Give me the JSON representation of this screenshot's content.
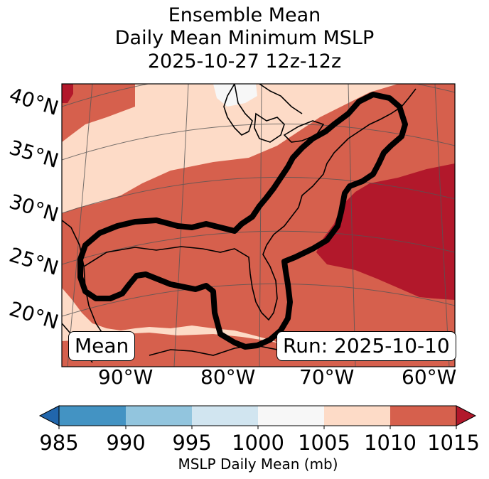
{
  "title": {
    "line1": "Ensemble Mean",
    "line2": "Daily Mean Minimum MSLP",
    "line3": "2025-10-27 12z-12z"
  },
  "map": {
    "latitude_labels": [
      "40°N",
      "35°N",
      "30°N",
      "25°N",
      "20°N"
    ],
    "longitude_labels": [
      "90°W",
      "80°W",
      "70°W",
      "60°W"
    ],
    "badge_left": "Mean",
    "badge_right": "Run: 2025-10-10",
    "contour_description": "black contour enclosing Gulf of Mexico, Florida and US East Coast"
  },
  "colorbar": {
    "ticks": [
      "985",
      "990",
      "995",
      "1000",
      "1005",
      "1010",
      "1015"
    ],
    "label": "MSLP Daily Mean (mb)",
    "colors": [
      "#2166ac",
      "#4393c3",
      "#92c5de",
      "#d1e5f0",
      "#f7f7f7",
      "#fddbc7",
      "#d6604d",
      "#b2182b"
    ]
  },
  "chart_data": {
    "type": "heatmap",
    "title": "Ensemble Mean Daily Mean Minimum MSLP 2025-10-27 12z-12z",
    "variable": "MSLP Daily Mean (mb)",
    "levels": [
      985,
      990,
      995,
      1000,
      1005,
      1010,
      1015
    ],
    "visible_bins": [
      "1000-1005",
      "1005-1010",
      "1010-1015",
      ">1015"
    ],
    "lat_range": [
      17,
      41
    ],
    "lon_range": [
      -97,
      -58
    ]
  }
}
